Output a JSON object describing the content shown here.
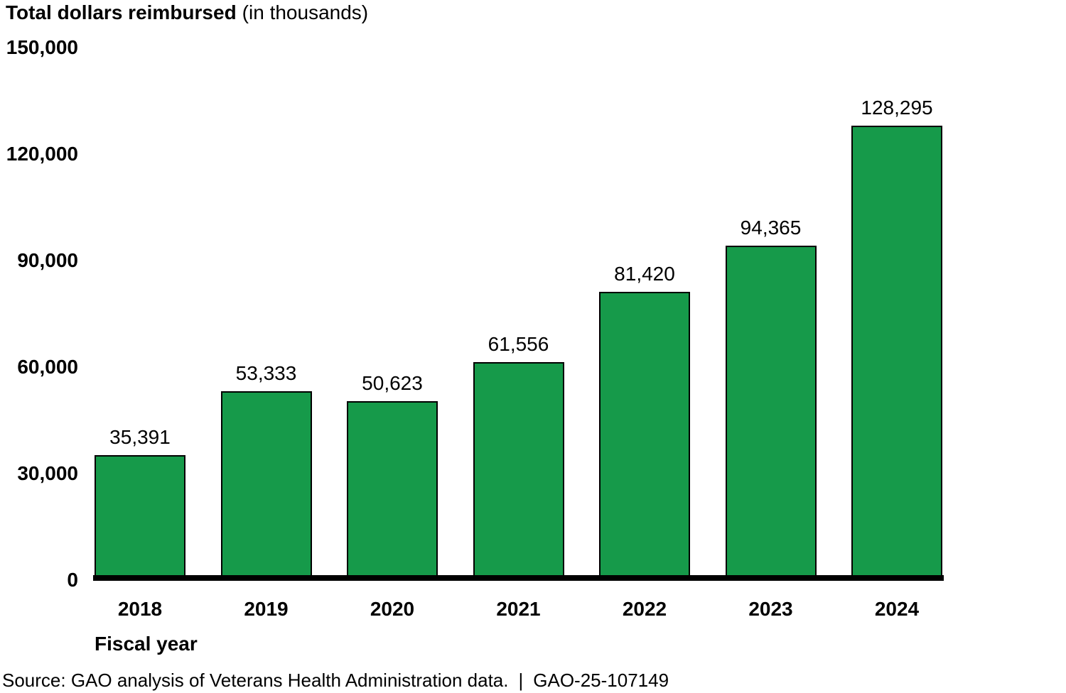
{
  "chart_data": {
    "type": "bar",
    "title": "Total dollars reimbursed",
    "subtitle": "(in thousands)",
    "xlabel": "Fiscal year",
    "ylabel": "",
    "categories": [
      "2018",
      "2019",
      "2020",
      "2021",
      "2022",
      "2023",
      "2024"
    ],
    "values": [
      35391,
      53333,
      50623,
      61556,
      81420,
      94365,
      128295
    ],
    "value_labels": [
      "35,391",
      "53,333",
      "50,623",
      "61,556",
      "81,420",
      "94,365",
      "128,295"
    ],
    "y_ticks": [
      {
        "value": 0,
        "label": "0"
      },
      {
        "value": 30000,
        "label": "30,000"
      },
      {
        "value": 60000,
        "label": "60,000"
      },
      {
        "value": 90000,
        "label": "90,000"
      },
      {
        "value": 120000,
        "label": "120,000"
      },
      {
        "value": 150000,
        "label": "150,000"
      }
    ],
    "ylim": [
      0,
      150000
    ],
    "grid": false,
    "legend": false,
    "bar_color": "#169a4a",
    "bar_border_color": "#000000",
    "axis_color": "#000000"
  },
  "source": {
    "prefix": "Source: GAO analysis of Veterans Health Administration data.",
    "separator": "|",
    "report_number": "GAO-25-107149"
  }
}
